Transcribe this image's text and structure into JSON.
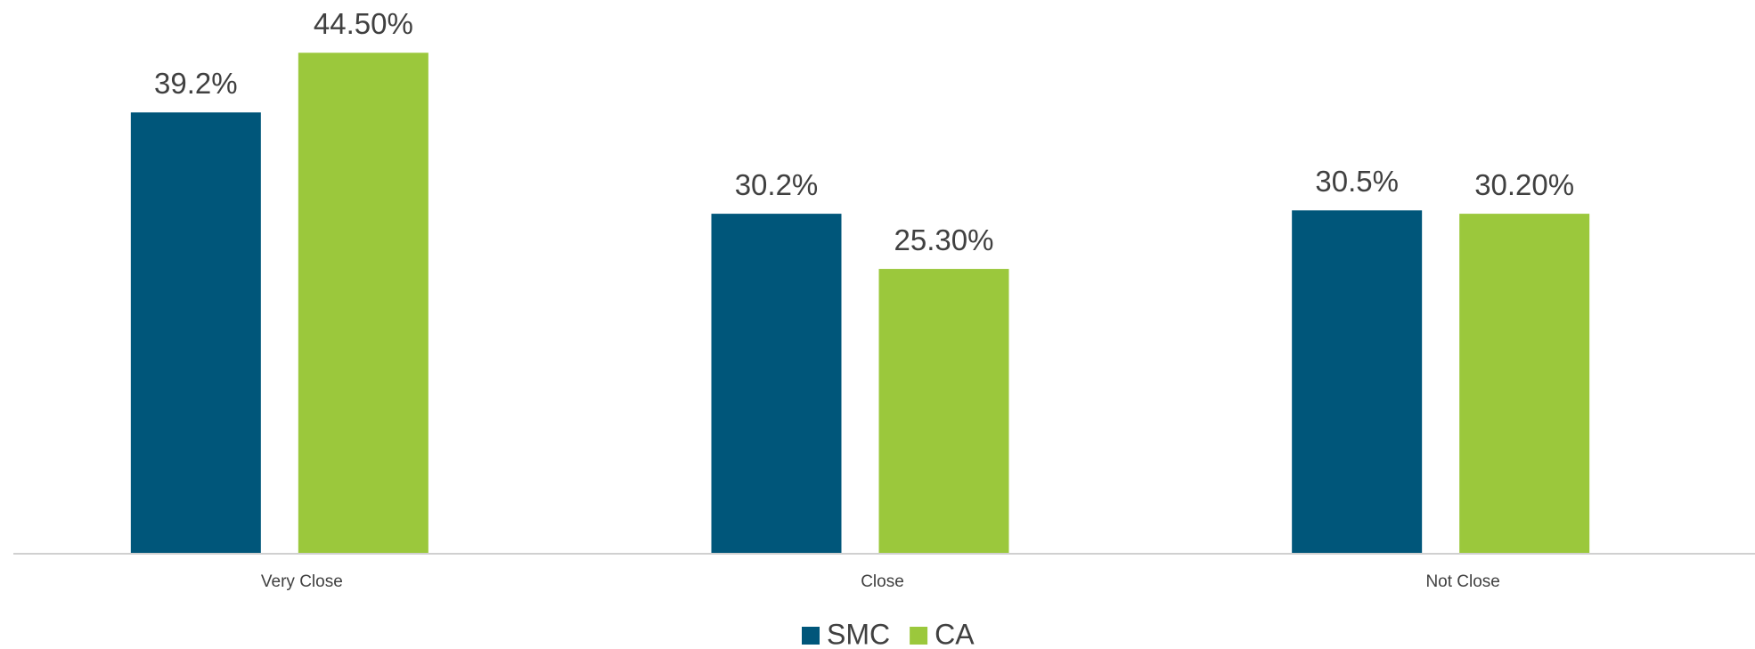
{
  "chart_data": {
    "type": "bar",
    "categories": [
      "Very Close",
      "Close",
      "Not Close"
    ],
    "series": [
      {
        "name": "SMC",
        "color": "#00567a",
        "values": [
          39.2,
          30.2,
          30.5
        ],
        "value_labels": [
          "39.2%",
          "30.2%",
          "30.5%"
        ]
      },
      {
        "name": "CA",
        "color": "#9bc83c",
        "values": [
          44.5,
          25.3,
          30.2
        ],
        "value_labels": [
          "44.50%",
          "25.30%",
          "30.20%"
        ]
      }
    ],
    "ylim": [
      0,
      48
    ],
    "legend": "bottom"
  }
}
